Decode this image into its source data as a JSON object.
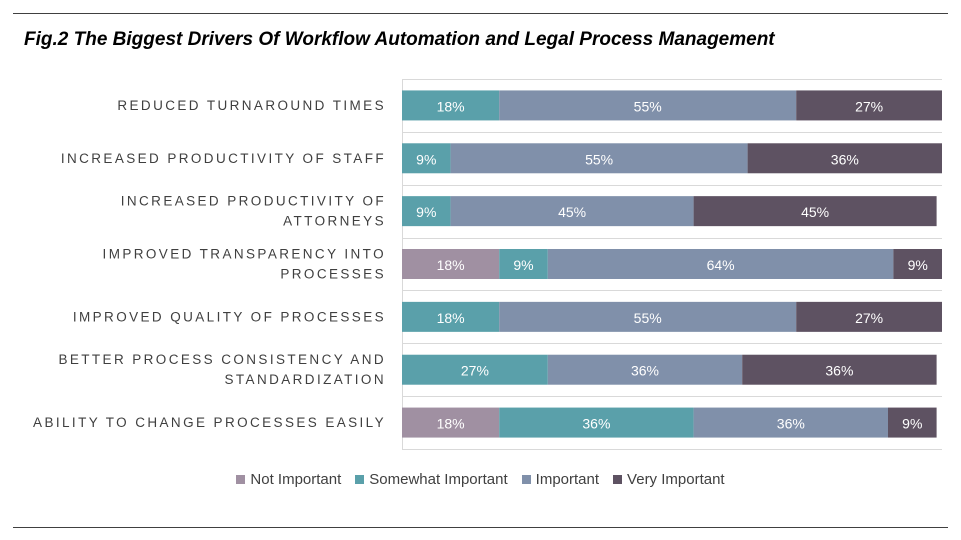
{
  "chart_data": {
    "type": "bar",
    "orientation": "horizontal",
    "stacked": true,
    "title": "Fig.2 The Biggest Drivers Of Workflow Automation and Legal Process Management",
    "categories": [
      [
        "REDUCED TURNAROUND TIMES"
      ],
      [
        "INCREASED PRODUCTIVITY OF STAFF"
      ],
      [
        "INCREASED PRODUCTIVITY OF",
        "ATTORNEYS"
      ],
      [
        "IMPROVED TRANSPARENCY INTO",
        "PROCESSES"
      ],
      [
        "IMPROVED QUALITY OF PROCESSES"
      ],
      [
        "BETTER PROCESS CONSISTENCY AND",
        "STANDARDIZATION"
      ],
      [
        "ABILITY TO CHANGE PROCESSES EASILY"
      ]
    ],
    "series": [
      {
        "name": "Not Important",
        "color": "#a090a2",
        "values": [
          0,
          0,
          0,
          18,
          0,
          0,
          18
        ]
      },
      {
        "name": "Somewhat Important",
        "color": "#5aa0aa",
        "values": [
          18,
          9,
          9,
          9,
          18,
          27,
          36
        ]
      },
      {
        "name": "Important",
        "color": "#8090aa",
        "values": [
          55,
          55,
          45,
          64,
          55,
          36,
          36
        ]
      },
      {
        "name": "Very Important",
        "color": "#5e5262",
        "values": [
          27,
          36,
          45,
          9,
          27,
          36,
          9
        ]
      }
    ],
    "value_suffix": "%",
    "xlim": [
      0,
      100
    ],
    "grid": true,
    "legend_position": "bottom"
  }
}
